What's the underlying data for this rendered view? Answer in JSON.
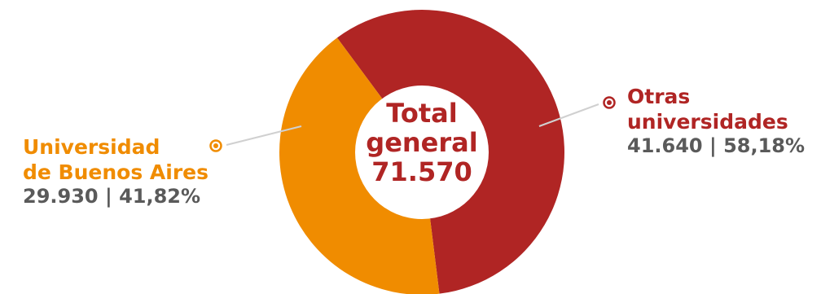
{
  "chart_data": {
    "type": "pie",
    "donut": true,
    "categories": [
      "Universidad de Buenos Aires",
      "Otras universidades"
    ],
    "values": [
      29930,
      41640
    ],
    "percent_labels": [
      "41,82%",
      "58,18%"
    ],
    "value_labels": [
      "29.930",
      "41.640"
    ],
    "colors": [
      "#f08c00",
      "#b02524"
    ],
    "legend": "callout labels",
    "center": {
      "line1": "Total",
      "line2": "general",
      "line3": "71.570",
      "color": "#b02524"
    },
    "labels": {
      "left": {
        "line1": "Universidad",
        "line2": "de Buenos Aires",
        "value": "29.930 | 41,82%",
        "color": "#f08c00"
      },
      "right": {
        "line1": "Otras",
        "line2": "universidades",
        "value": "41.640 | 58,18%",
        "color": "#b02524"
      }
    }
  }
}
